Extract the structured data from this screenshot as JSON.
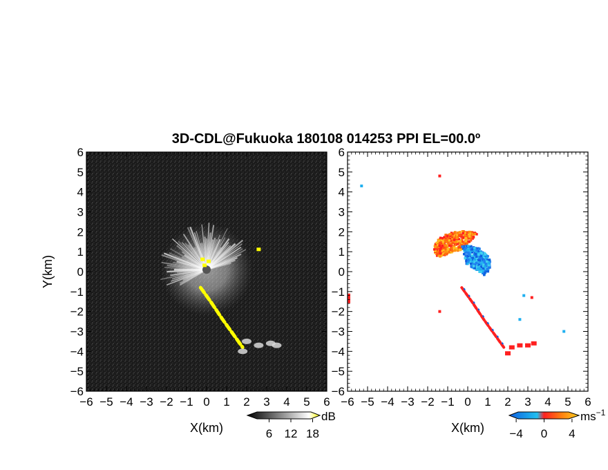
{
  "chart_data": [
    {
      "type": "heatmap",
      "title": "3D-CDL@Fukuoka 180108 014253 PPI EL=00.0º",
      "panel": "left",
      "field": "intensity",
      "xlabel": "X(km)",
      "ylabel": "Y(km)",
      "xlim": [
        -6,
        6
      ],
      "ylim": [
        -6,
        6
      ],
      "xticks": [
        "−6",
        "−5",
        "−4",
        "−3",
        "−2",
        "−1",
        "0",
        "1",
        "2",
        "3",
        "4",
        "5",
        "6"
      ],
      "yticks": [
        "6",
        "5",
        "4",
        "3",
        "2",
        "1",
        "0",
        "−1",
        "−2",
        "−3",
        "−4",
        "−5",
        "−6"
      ],
      "background": "#1c1c1c",
      "colorbar": {
        "unit": "dB",
        "ticks": [
          "6",
          "12",
          "18"
        ],
        "tick_values": [
          6,
          12,
          18
        ],
        "range": [
          0,
          20
        ],
        "colors": [
          "#000000",
          "#ffffff",
          "#ffff00"
        ]
      },
      "features": {
        "bright_fan": {
          "center": [
            0,
            0.1
          ],
          "radius_km": 2.3,
          "angle_from_deg": 15,
          "angle_to_deg": 210
        },
        "yellow_streak": [
          [
            -0.3,
            -0.8
          ],
          [
            0.2,
            -1.5
          ],
          [
            0.8,
            -2.4
          ],
          [
            1.3,
            -3.1
          ],
          [
            1.8,
            -3.8
          ]
        ],
        "white_patches": [
          [
            2.0,
            -3.5
          ],
          [
            2.6,
            -3.7
          ],
          [
            3.2,
            -3.6
          ],
          [
            3.5,
            -3.7
          ],
          [
            1.8,
            -4.0
          ]
        ]
      }
    },
    {
      "type": "heatmap",
      "panel": "right",
      "field": "radial_velocity",
      "xlabel": "X(km)",
      "xlim": [
        -6,
        6
      ],
      "ylim": [
        -6,
        6
      ],
      "xticks": [
        "−6",
        "−5",
        "−4",
        "−3",
        "−2",
        "−1",
        "0",
        "1",
        "2",
        "3",
        "4",
        "5",
        "6"
      ],
      "yticks": [
        "6",
        "5",
        "4",
        "3",
        "2",
        "1",
        "0",
        "−1",
        "−2",
        "−3",
        "−4",
        "−5",
        "−6"
      ],
      "background": "#ffffff",
      "colorbar": {
        "unit": "ms",
        "unit_exp": "−1",
        "ticks": [
          "−4",
          "0",
          "4"
        ],
        "tick_values": [
          -4,
          0,
          4
        ],
        "range": [
          -5,
          5
        ],
        "colors": [
          "#1060e0",
          "#20c0f0",
          "#ff2020",
          "#ff8010",
          "#ffd020"
        ]
      },
      "features": {
        "positive_region": {
          "center": [
            -0.3,
            1.2
          ],
          "extent_km": 1.6,
          "color": "#ff7010"
        },
        "negative_region": {
          "center": [
            0.9,
            0.8
          ],
          "extent_km": 1.5,
          "color": "#1060e0"
        },
        "streak": [
          [
            -0.3,
            -0.8
          ],
          [
            0.2,
            -1.5
          ],
          [
            0.8,
            -2.4
          ],
          [
            1.3,
            -3.1
          ],
          [
            1.8,
            -3.8
          ]
        ],
        "specks": [
          [
            -5.3,
            4.3
          ],
          [
            -1.4,
            4.8
          ],
          [
            2.8,
            -1.2
          ],
          [
            3.2,
            -1.3
          ],
          [
            4.8,
            -3.0
          ],
          [
            -1.4,
            -2.0
          ],
          [
            2.6,
            -2.4
          ]
        ]
      }
    }
  ]
}
